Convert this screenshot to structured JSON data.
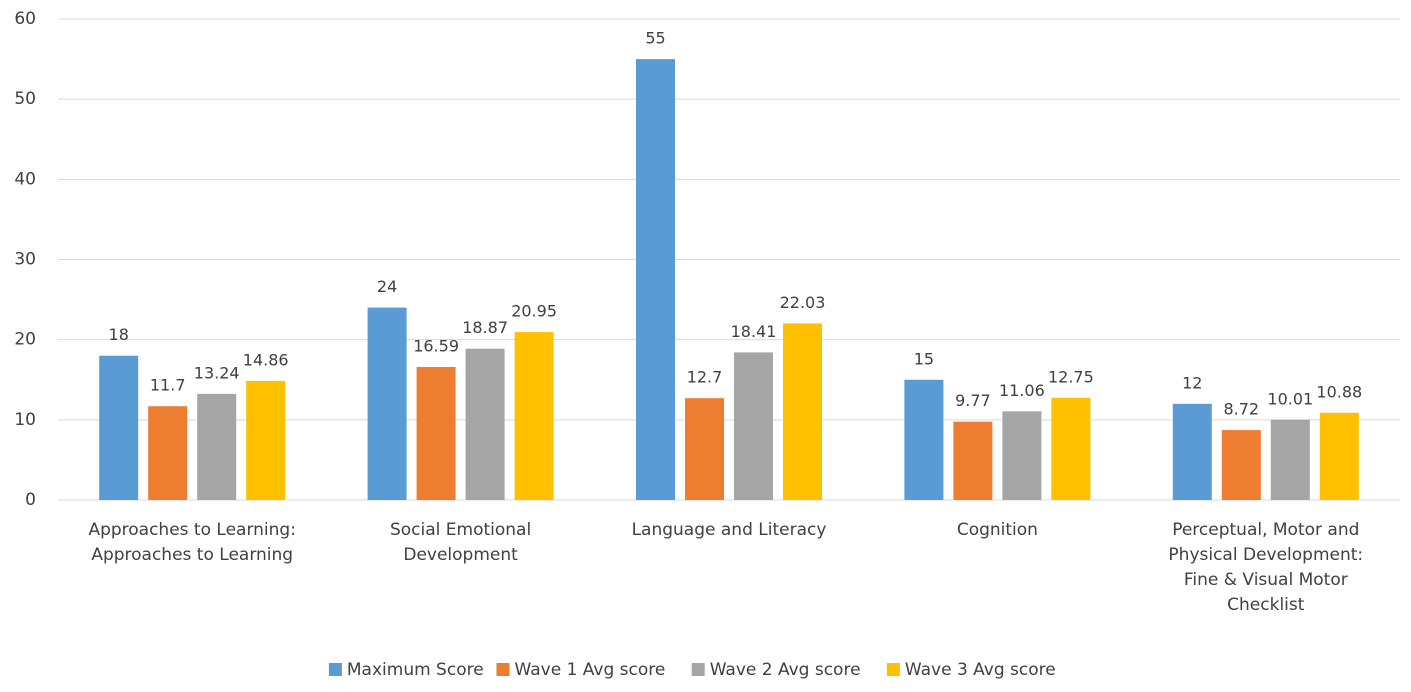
{
  "chart_data": {
    "type": "bar",
    "categories": [
      "Approaches to Learning: Approaches to Learning",
      "Social Emotional Development",
      "Language and Literacy",
      "Cognition",
      "Perceptual, Motor and Physical Development: Fine & Visual Motor Checklist"
    ],
    "series": [
      {
        "name": "Maximum Score",
        "color": "#5b9bd5",
        "values": [
          18,
          24,
          55,
          15,
          12
        ]
      },
      {
        "name": "Wave 1 Avg score",
        "color": "#ed7d31",
        "values": [
          11.7,
          16.59,
          12.7,
          9.77,
          8.72
        ]
      },
      {
        "name": "Wave 2 Avg score",
        "color": "#a5a5a5",
        "values": [
          13.24,
          18.87,
          18.41,
          11.06,
          10.01
        ]
      },
      {
        "name": "Wave 3 Avg score",
        "color": "#ffc000",
        "values": [
          14.86,
          20.95,
          22.03,
          12.75,
          10.88
        ]
      }
    ],
    "ylim": [
      0,
      60
    ],
    "yticks": [
      0,
      10,
      20,
      30,
      40,
      50,
      60
    ],
    "grid": true,
    "legend": "bottom"
  }
}
